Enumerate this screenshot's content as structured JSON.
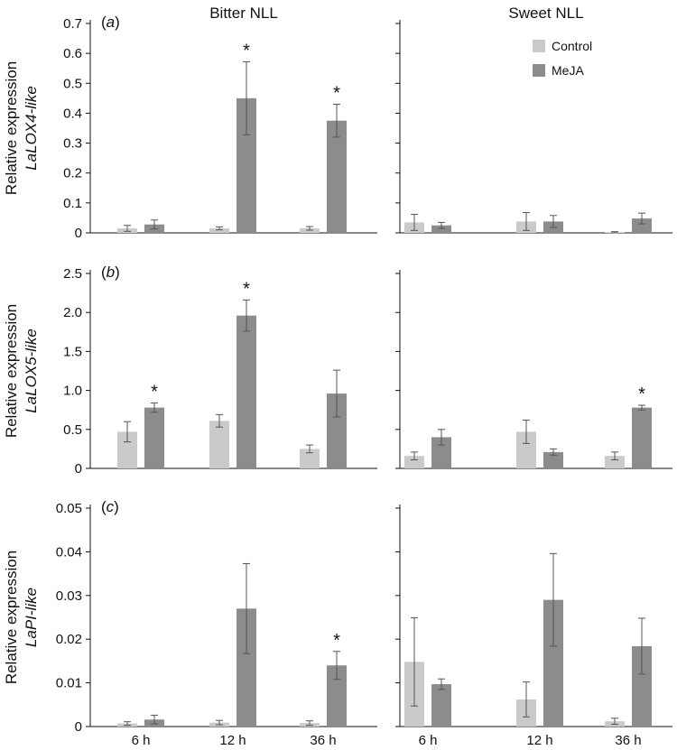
{
  "figure": {
    "col_titles": [
      "Bitter NLL",
      "Sweet NLL"
    ]
  },
  "chart_data": [
    {
      "type": "bar",
      "panel_label": "(a)",
      "ylabel": [
        "Relative expression",
        "LaLOX4-like"
      ],
      "ylim": [
        0,
        0.7
      ],
      "yticks": [
        "0",
        "0.1",
        "0.2",
        "0.3",
        "0.4",
        "0.5",
        "0.6",
        "0.7"
      ],
      "categories": [
        "6 h",
        "12 h",
        "36 h"
      ],
      "legend": {
        "entries": [
          "Control",
          "MeJA"
        ],
        "placement": "top-right of Sweet NLL panel"
      },
      "columns": [
        {
          "title": "Bitter NLL",
          "series": [
            {
              "name": "Control",
              "values": [
                0.015,
                0.015,
                0.015
              ],
              "errors": [
                0.01,
                0.005,
                0.006
              ]
            },
            {
              "name": "MeJA",
              "values": [
                0.028,
                0.45,
                0.375
              ],
              "errors": [
                0.015,
                0.122,
                0.055
              ]
            }
          ],
          "significance": [
            false,
            true,
            true
          ]
        },
        {
          "title": "Sweet NLL",
          "series": [
            {
              "name": "Control",
              "values": [
                0.035,
                0.038,
                0.002
              ],
              "errors": [
                0.027,
                0.03,
                0.002
              ]
            },
            {
              "name": "MeJA",
              "values": [
                0.025,
                0.038,
                0.048
              ],
              "errors": [
                0.01,
                0.02,
                0.018
              ]
            }
          ],
          "significance": [
            false,
            false,
            false
          ]
        }
      ]
    },
    {
      "type": "bar",
      "panel_label": "(b)",
      "ylabel": [
        "Relative expression",
        "LaLOX5-like"
      ],
      "ylim": [
        0,
        2.5
      ],
      "yticks": [
        "0",
        "0.5",
        "1.0",
        "1.5",
        "2.0",
        "2.5"
      ],
      "categories": [
        "6 h",
        "12 h",
        "36 h"
      ],
      "columns": [
        {
          "title": "Bitter NLL",
          "series": [
            {
              "name": "Control",
              "values": [
                0.47,
                0.61,
                0.25
              ],
              "errors": [
                0.13,
                0.08,
                0.05
              ]
            },
            {
              "name": "MeJA",
              "values": [
                0.78,
                1.96,
                0.96
              ],
              "errors": [
                0.06,
                0.2,
                0.3
              ]
            }
          ],
          "significance": [
            true,
            true,
            false
          ]
        },
        {
          "title": "Sweet NLL",
          "series": [
            {
              "name": "Control",
              "values": [
                0.16,
                0.47,
                0.16
              ],
              "errors": [
                0.05,
                0.15,
                0.05
              ]
            },
            {
              "name": "MeJA",
              "values": [
                0.4,
                0.21,
                0.78
              ],
              "errors": [
                0.1,
                0.04,
                0.03
              ]
            }
          ],
          "significance": [
            false,
            false,
            true
          ]
        }
      ]
    },
    {
      "type": "bar",
      "panel_label": "(c)",
      "ylabel": [
        "Relative expression",
        "LaPI-like"
      ],
      "ylim": [
        0,
        0.05
      ],
      "yticks": [
        "0",
        "0.01",
        "0.02",
        "0.03",
        "0.04",
        "0.05"
      ],
      "categories": [
        "6 h",
        "12 h",
        "36 h"
      ],
      "columns": [
        {
          "title": "Bitter NLL",
          "series": [
            {
              "name": "Control",
              "values": [
                0.0007,
                0.0009,
                0.0008
              ],
              "errors": [
                0.0004,
                0.0005,
                0.0005
              ]
            },
            {
              "name": "MeJA",
              "values": [
                0.0016,
                0.027,
                0.014
              ],
              "errors": [
                0.001,
                0.0103,
                0.0032
              ]
            }
          ],
          "significance": [
            false,
            false,
            true
          ]
        },
        {
          "title": "Sweet NLL",
          "series": [
            {
              "name": "Control",
              "values": [
                0.0148,
                0.0062,
                0.0012
              ],
              "errors": [
                0.0101,
                0.004,
                0.0007
              ]
            },
            {
              "name": "MeJA",
              "values": [
                0.0097,
                0.029,
                0.0184
              ],
              "errors": [
                0.0012,
                0.0106,
                0.0064
              ]
            }
          ],
          "significance": [
            false,
            false,
            false
          ]
        }
      ]
    }
  ],
  "colors": {
    "Control": "#cacaca",
    "MeJA": "#8c8c8c",
    "axis": "#111111",
    "error_bar": "#555555"
  }
}
